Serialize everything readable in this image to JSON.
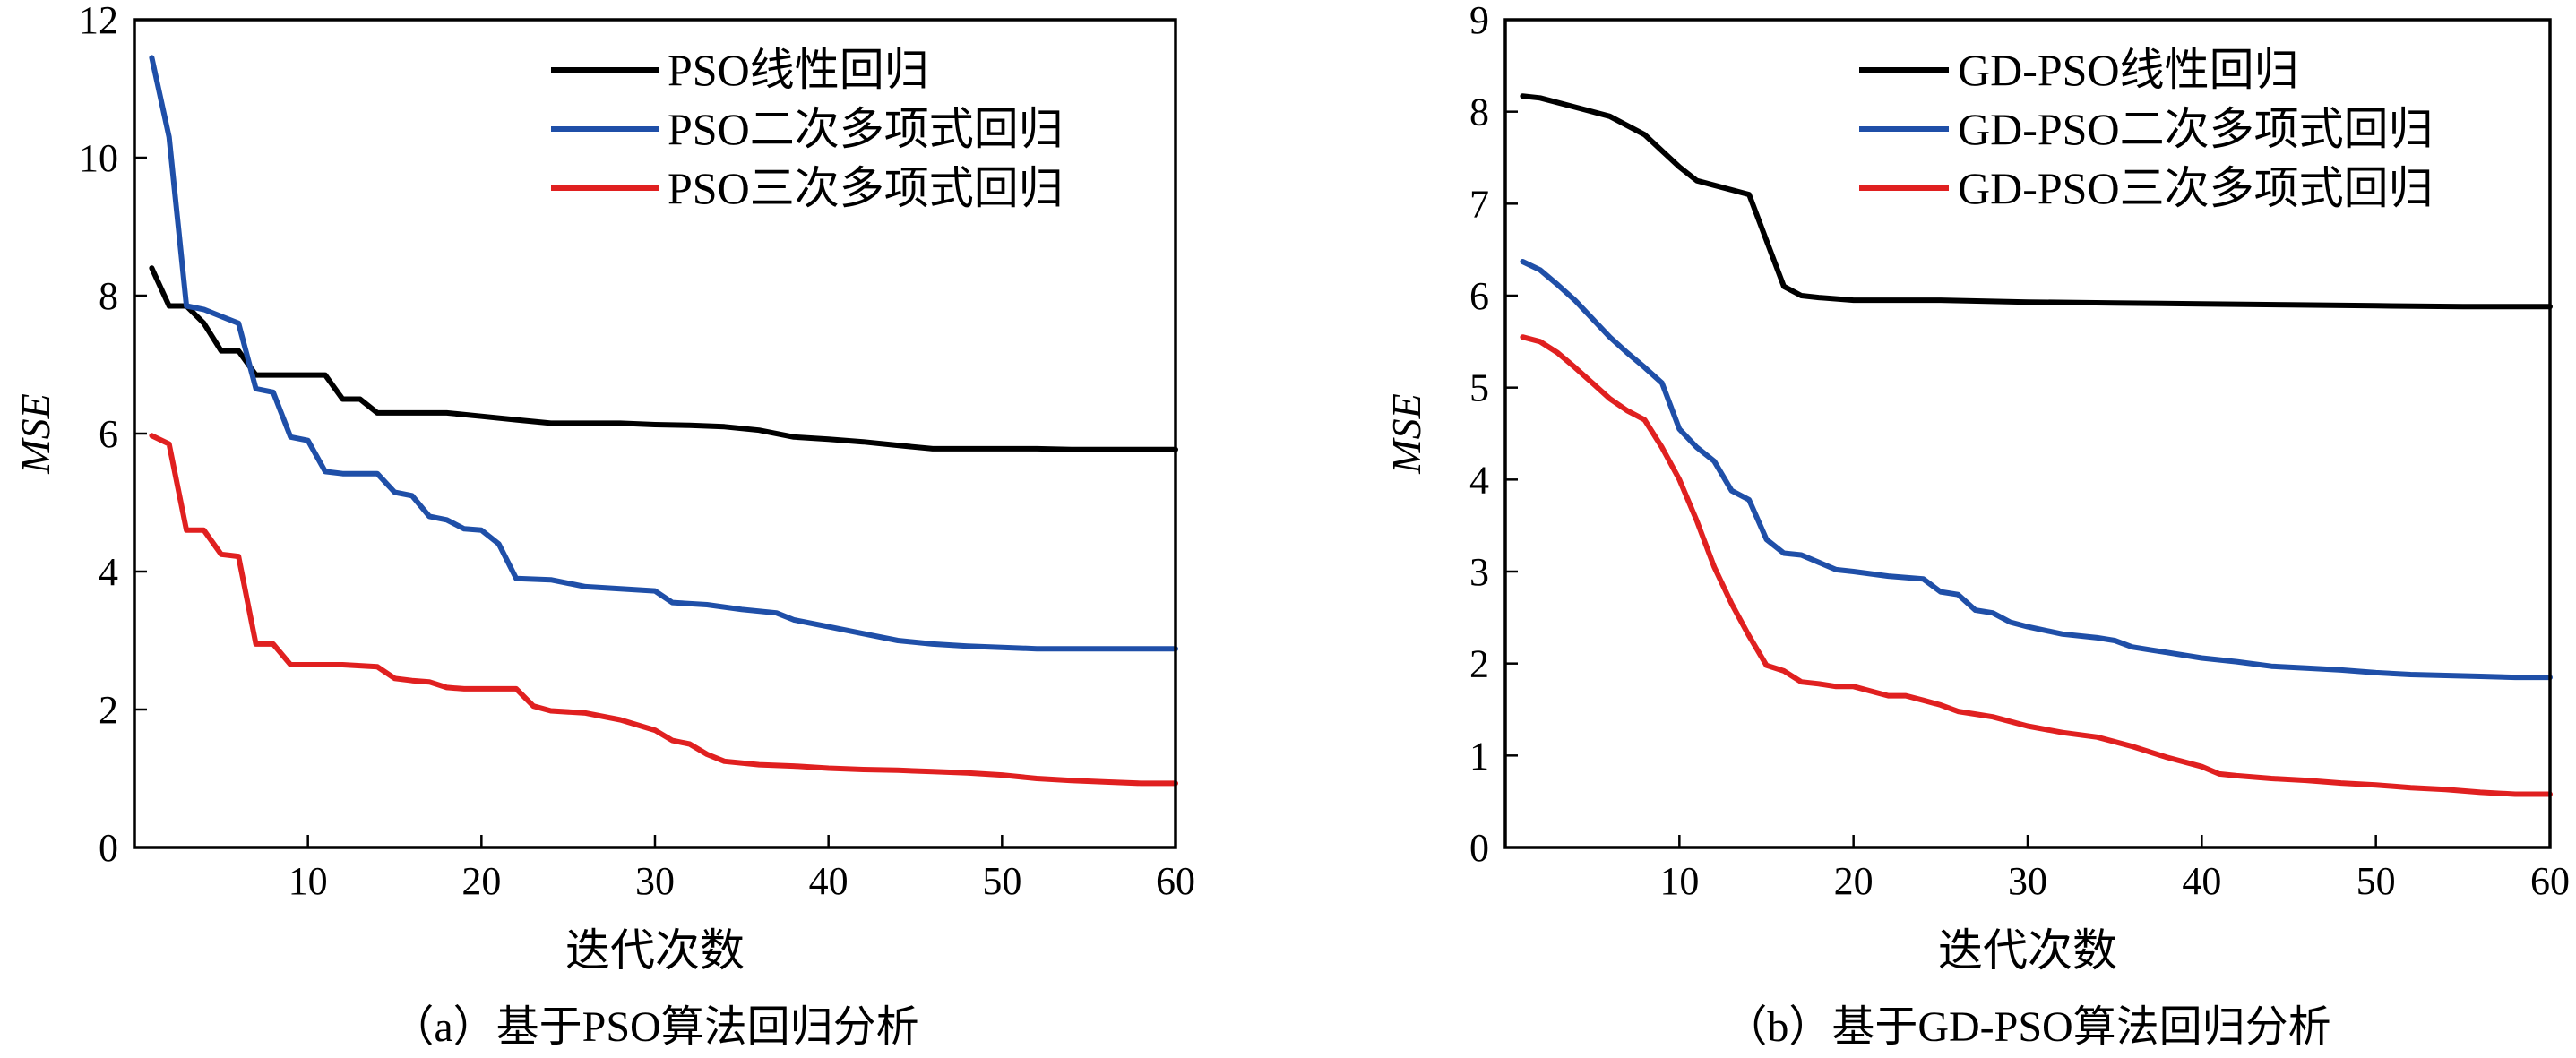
{
  "chart_data": [
    {
      "type": "line",
      "panel": "a",
      "caption": "（a）基于PSO算法回归分析",
      "xlabel": "迭代次数",
      "ylabel": "MSE",
      "xlim": [
        0,
        60
      ],
      "ylim": [
        0,
        12
      ],
      "xticks": [
        10,
        20,
        30,
        40,
        50,
        60
      ],
      "yticks": [
        0,
        2,
        4,
        6,
        8,
        10,
        12
      ],
      "legend_position": "top-right",
      "grid": false,
      "series": [
        {
          "name": "PSO线性回归",
          "color": "#000000",
          "x": [
            1,
            2,
            3,
            4,
            5,
            6,
            7,
            8,
            9,
            10,
            11,
            12,
            13,
            14,
            16,
            18,
            20,
            22,
            24,
            26,
            28,
            30,
            32,
            34,
            36,
            38,
            40,
            42,
            44,
            46,
            48,
            50,
            52,
            54,
            56,
            58,
            60
          ],
          "y": [
            8.4,
            7.85,
            7.85,
            7.6,
            7.2,
            7.2,
            6.85,
            6.85,
            6.85,
            6.85,
            6.85,
            6.5,
            6.5,
            6.3,
            6.3,
            6.3,
            6.25,
            6.2,
            6.15,
            6.15,
            6.15,
            6.13,
            6.12,
            6.1,
            6.05,
            5.95,
            5.92,
            5.88,
            5.83,
            5.78,
            5.78,
            5.78,
            5.78,
            5.77,
            5.77,
            5.77,
            5.77
          ]
        },
        {
          "name": "PSO二次多项式回归",
          "color": "#1f4fa8",
          "x": [
            1,
            2,
            3,
            4,
            5,
            6,
            7,
            8,
            9,
            10,
            11,
            12,
            14,
            15,
            16,
            17,
            18,
            19,
            20,
            21,
            22,
            24,
            26,
            28,
            30,
            31,
            33,
            35,
            37,
            38,
            40,
            42,
            44,
            46,
            48,
            50,
            52,
            54,
            56,
            58,
            60
          ],
          "y": [
            11.45,
            10.3,
            7.85,
            7.8,
            7.7,
            7.6,
            6.65,
            6.6,
            5.95,
            5.9,
            5.45,
            5.42,
            5.42,
            5.15,
            5.1,
            4.8,
            4.75,
            4.62,
            4.6,
            4.4,
            3.9,
            3.88,
            3.78,
            3.75,
            3.72,
            3.55,
            3.52,
            3.45,
            3.4,
            3.3,
            3.2,
            3.1,
            3.0,
            2.95,
            2.92,
            2.9,
            2.88,
            2.88,
            2.88,
            2.88,
            2.88
          ]
        },
        {
          "name": "PSO三次多项式回归",
          "color": "#e02020",
          "x": [
            1,
            2,
            3,
            4,
            5,
            6,
            7,
            8,
            9,
            10,
            12,
            14,
            15,
            16,
            17,
            18,
            19,
            20,
            21,
            22,
            23,
            24,
            26,
            28,
            30,
            31,
            32,
            33,
            34,
            36,
            38,
            40,
            42,
            44,
            46,
            48,
            50,
            52,
            54,
            56,
            58,
            60
          ],
          "y": [
            5.97,
            5.85,
            4.6,
            4.6,
            4.25,
            4.22,
            2.95,
            2.95,
            2.65,
            2.65,
            2.65,
            2.62,
            2.45,
            2.42,
            2.4,
            2.32,
            2.3,
            2.3,
            2.3,
            2.3,
            2.05,
            1.98,
            1.95,
            1.85,
            1.7,
            1.55,
            1.5,
            1.35,
            1.25,
            1.2,
            1.18,
            1.15,
            1.13,
            1.12,
            1.1,
            1.08,
            1.05,
            1.0,
            0.97,
            0.95,
            0.93,
            0.93
          ]
        }
      ]
    },
    {
      "type": "line",
      "panel": "b",
      "caption": "（b）基于GD-PSO算法回归分析",
      "xlabel": "迭代次数",
      "ylabel": "MSE",
      "xlim": [
        0,
        60
      ],
      "ylim": [
        0,
        9
      ],
      "xticks": [
        10,
        20,
        30,
        40,
        50,
        60
      ],
      "yticks": [
        0,
        1,
        2,
        3,
        4,
        5,
        6,
        7,
        8,
        9
      ],
      "legend_position": "top-right",
      "grid": false,
      "series": [
        {
          "name": "GD-PSO线性回归",
          "color": "#000000",
          "x": [
            1,
            2,
            4,
            6,
            8,
            10,
            11,
            12,
            14,
            15,
            16,
            17,
            18,
            20,
            25,
            30,
            35,
            40,
            45,
            50,
            55,
            60
          ],
          "y": [
            8.17,
            8.15,
            8.05,
            7.95,
            7.75,
            7.4,
            7.25,
            7.2,
            7.1,
            6.6,
            6.1,
            6.0,
            5.98,
            5.95,
            5.95,
            5.93,
            5.92,
            5.91,
            5.9,
            5.89,
            5.88,
            5.88
          ]
        },
        {
          "name": "GD-PSO二次多项式回归",
          "color": "#1f4fa8",
          "x": [
            1,
            2,
            3,
            4,
            5,
            6,
            7,
            8,
            9,
            10,
            11,
            12,
            13,
            14,
            15,
            16,
            17,
            18,
            19,
            20,
            22,
            24,
            25,
            26,
            27,
            28,
            29,
            30,
            32,
            34,
            35,
            36,
            37,
            38,
            40,
            42,
            44,
            46,
            48,
            50,
            52,
            54,
            56,
            58,
            60
          ],
          "y": [
            6.37,
            6.28,
            6.12,
            5.95,
            5.75,
            5.55,
            5.38,
            5.22,
            5.05,
            4.55,
            4.35,
            4.2,
            3.88,
            3.78,
            3.35,
            3.2,
            3.18,
            3.1,
            3.02,
            3.0,
            2.95,
            2.92,
            2.78,
            2.75,
            2.58,
            2.55,
            2.45,
            2.4,
            2.32,
            2.28,
            2.25,
            2.18,
            2.15,
            2.12,
            2.06,
            2.02,
            1.97,
            1.95,
            1.93,
            1.9,
            1.88,
            1.87,
            1.86,
            1.85,
            1.85
          ]
        },
        {
          "name": "GD-PSO三次多项式回归",
          "color": "#e02020",
          "x": [
            1,
            2,
            3,
            4,
            5,
            6,
            7,
            8,
            9,
            10,
            11,
            12,
            13,
            14,
            15,
            16,
            17,
            18,
            19,
            20,
            21,
            22,
            23,
            24,
            25,
            26,
            27,
            28,
            30,
            32,
            34,
            36,
            38,
            40,
            41,
            42,
            44,
            46,
            48,
            50,
            52,
            54,
            56,
            58,
            60
          ],
          "y": [
            5.55,
            5.5,
            5.38,
            5.22,
            5.05,
            4.88,
            4.75,
            4.65,
            4.35,
            4.0,
            3.55,
            3.05,
            2.65,
            2.3,
            1.98,
            1.92,
            1.8,
            1.78,
            1.75,
            1.75,
            1.7,
            1.65,
            1.65,
            1.6,
            1.55,
            1.48,
            1.45,
            1.42,
            1.32,
            1.25,
            1.2,
            1.1,
            0.98,
            0.88,
            0.8,
            0.78,
            0.75,
            0.73,
            0.7,
            0.68,
            0.65,
            0.63,
            0.6,
            0.58,
            0.58
          ]
        }
      ]
    }
  ]
}
